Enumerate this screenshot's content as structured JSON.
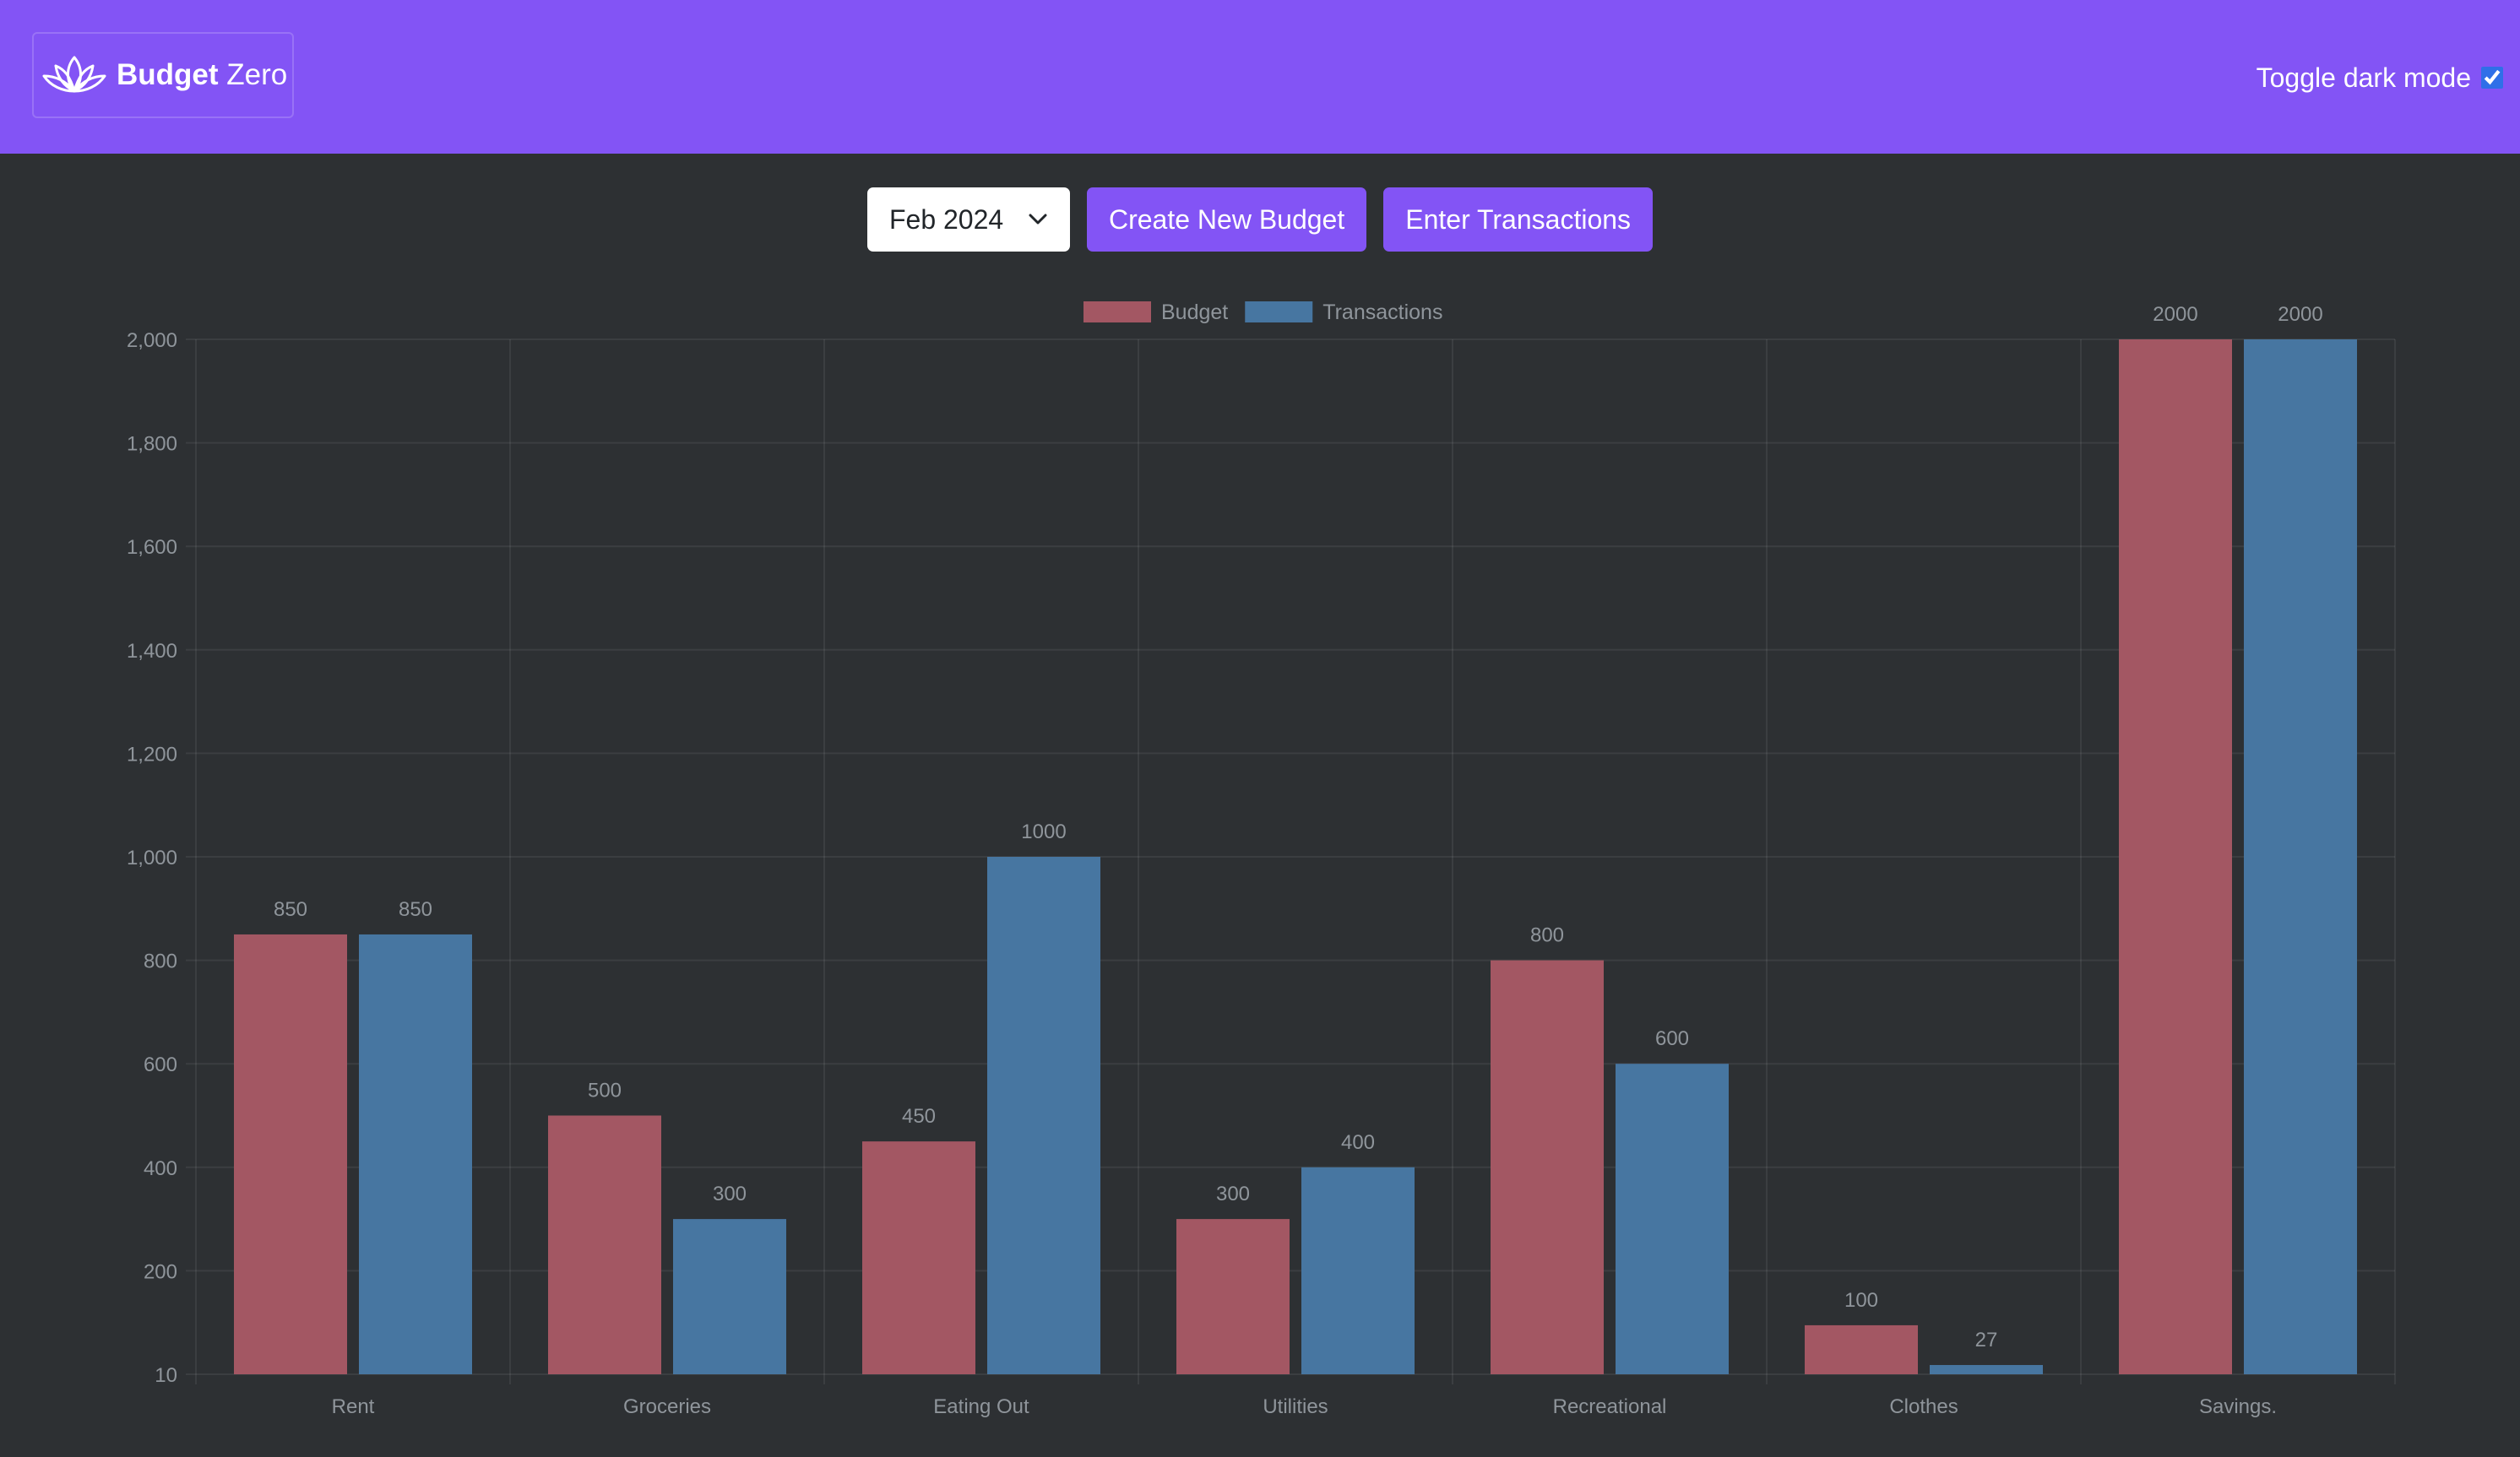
{
  "brand": {
    "bold": "Budget",
    "light": "Zero",
    "icon": "lotus-icon"
  },
  "dark_mode": {
    "label": "Toggle dark mode",
    "checked": true
  },
  "month_select": {
    "value": "Feb 2024",
    "icon": "chevron-down-icon"
  },
  "buttons": {
    "create": "Create New Budget",
    "enter": "Enter Transactions"
  },
  "colors": {
    "navbar": "#8354f5",
    "background": "#2d3033",
    "budget": "#a35763",
    "transactions": "#4776a1"
  },
  "chart_data": {
    "type": "bar",
    "categories": [
      "Rent",
      "Groceries",
      "Eating Out",
      "Utilities",
      "Recreational",
      "Clothes",
      "Savings."
    ],
    "series": [
      {
        "name": "Budget",
        "values": [
          850,
          500,
          450,
          300,
          800,
          100,
          2000
        ]
      },
      {
        "name": "Transactions",
        "values": [
          850,
          300,
          1000,
          400,
          600,
          27,
          2000
        ]
      }
    ],
    "yticks": [
      "10",
      "200",
      "400",
      "600",
      "800",
      "1,000",
      "1,200",
      "1,400",
      "1,600",
      "1,800",
      "2,000"
    ],
    "ylim": [
      10,
      2000
    ],
    "grid": true,
    "legend": "top-center",
    "data_labels": true
  }
}
